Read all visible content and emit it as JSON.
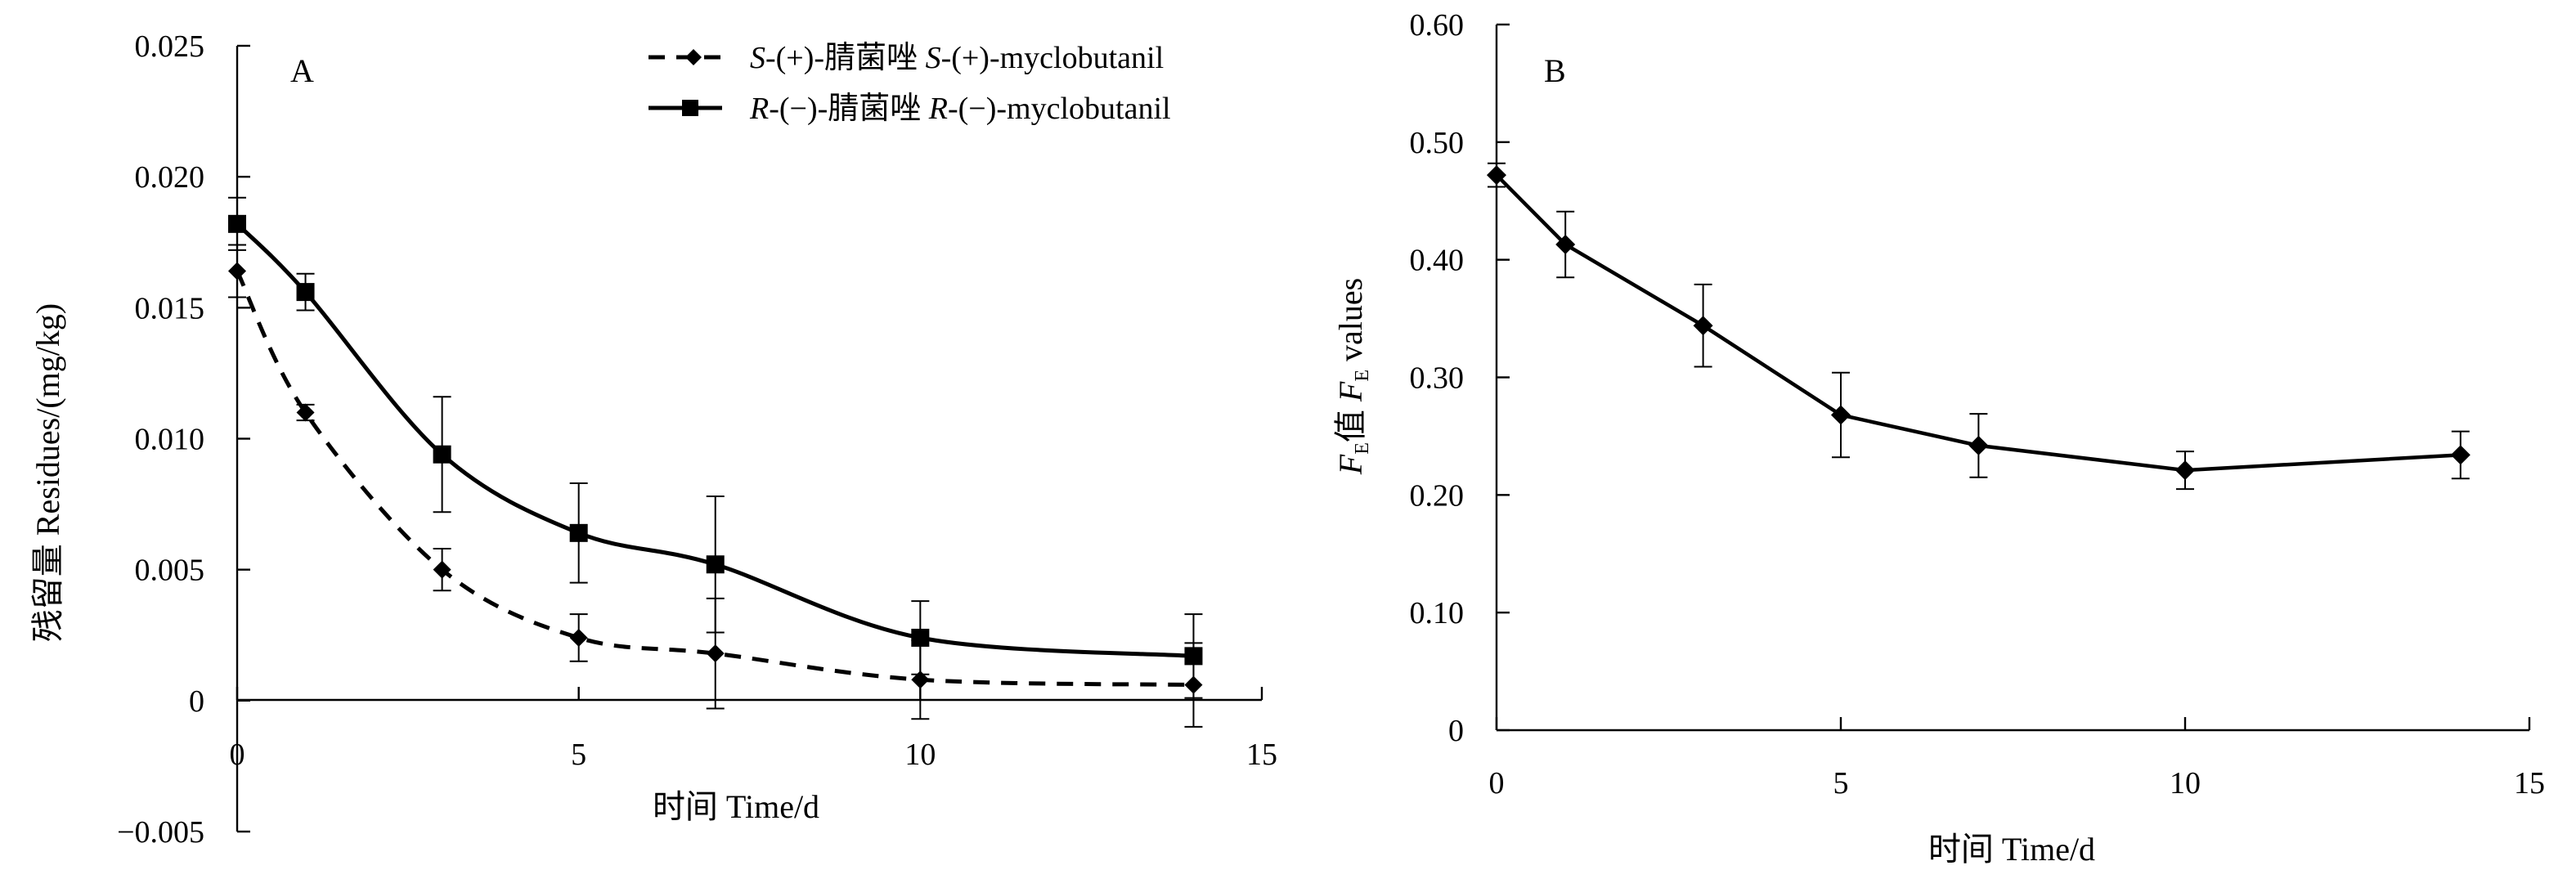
{
  "chart_data": [
    {
      "panel": "A",
      "type": "line",
      "ylabel": "残留量 Residues/(mg/kg)",
      "xlabel": "时间 Time/d",
      "xlim": [
        0,
        15
      ],
      "ylim": [
        -0.005,
        0.025
      ],
      "xticks": [
        "0",
        "5",
        "10",
        "15"
      ],
      "yticks": [
        "−0.005",
        "0",
        "0.005",
        "0.010",
        "0.015",
        "0.020",
        "0.025"
      ],
      "legend_position": "top-right",
      "series": [
        {
          "name": "S-(+)-腈菌唑 S-(+)-myclobutanil",
          "name_parts": {
            "p1": "S",
            "p2": "-(+)-腈菌唑 ",
            "p3": "S",
            "p4": "-(+)-myclobutanil"
          },
          "style": "dashed-diamond",
          "x": [
            0,
            1,
            3,
            5,
            7,
            10,
            14
          ],
          "y": [
            0.0164,
            0.011,
            0.005,
            0.0024,
            0.0018,
            0.0008,
            0.0006
          ],
          "err": [
            0.001,
            0.0003,
            0.0008,
            0.0009,
            0.0021,
            0.0015,
            0.0016
          ]
        },
        {
          "name": "R-(−)-腈菌唑 R-(−)-myclobutanil",
          "name_parts": {
            "p1": "R",
            "p2": "-(−)-腈菌唑 ",
            "p3": "R",
            "p4": "-(−)-myclobutanil"
          },
          "style": "solid-square",
          "x": [
            0,
            1,
            3,
            5,
            7,
            10,
            14
          ],
          "y": [
            0.0182,
            0.0156,
            0.0094,
            0.0064,
            0.0052,
            0.0024,
            0.0017
          ],
          "err": [
            0.001,
            0.0007,
            0.0022,
            0.0019,
            0.0026,
            0.0014,
            0.0016
          ]
        }
      ]
    },
    {
      "panel": "B",
      "type": "line",
      "ylabel": "FE值 FE values",
      "ylabel_parts": {
        "f1": "F",
        "sub1": "E",
        "mid": "值 ",
        "f2": "F",
        "sub2": "E",
        "tail": " values"
      },
      "xlabel": "时间 Time/d",
      "xlim": [
        0,
        15
      ],
      "ylim": [
        0,
        0.6
      ],
      "xticks": [
        "0",
        "5",
        "10",
        "15"
      ],
      "yticks": [
        "0",
        "0.10",
        "0.20",
        "0.30",
        "0.40",
        "0.50",
        "0.60"
      ],
      "series": [
        {
          "style": "solid-diamond",
          "x": [
            0,
            1,
            3,
            5,
            7,
            10,
            14
          ],
          "y": [
            0.472,
            0.413,
            0.344,
            0.268,
            0.242,
            0.221,
            0.234
          ],
          "err": [
            0.01,
            0.028,
            0.035,
            0.036,
            0.027,
            0.016,
            0.02
          ]
        }
      ]
    }
  ]
}
